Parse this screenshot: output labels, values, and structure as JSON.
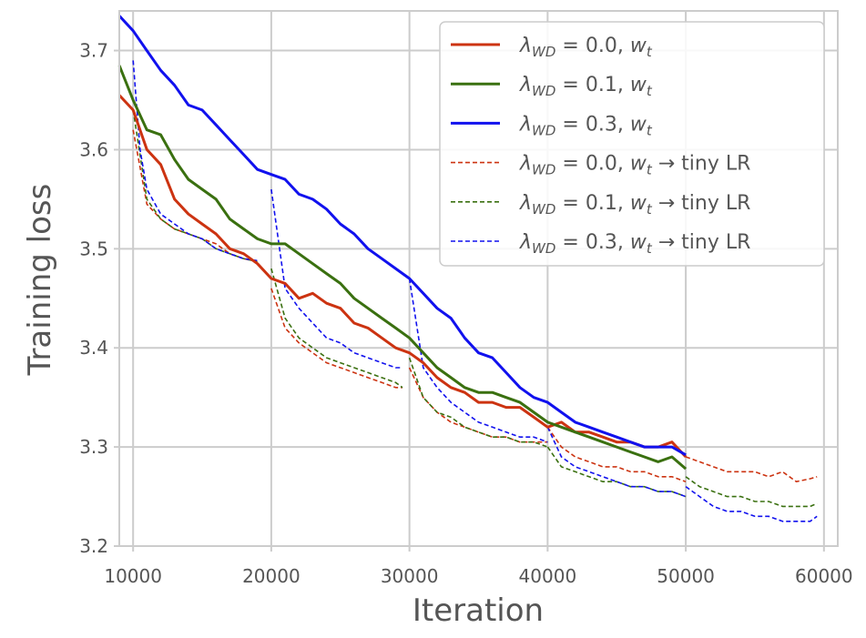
{
  "chart_data": {
    "type": "line",
    "xlabel": "Iteration",
    "ylabel": "Training loss",
    "xlim": [
      9000,
      61000
    ],
    "ylim": [
      3.2,
      3.74
    ],
    "xticks": [
      10000,
      20000,
      30000,
      40000,
      50000,
      60000
    ],
    "xtick_labels": [
      "10000",
      "20000",
      "30000",
      "40000",
      "50000",
      "60000"
    ],
    "yticks": [
      3.2,
      3.3,
      3.4,
      3.5,
      3.6,
      3.7
    ],
    "ytick_labels": [
      "3.2",
      "3.3",
      "3.4",
      "3.5",
      "3.6",
      "3.7"
    ],
    "grid": true,
    "legend_position": "top-right",
    "legend": [
      {
        "lambda_value": "0.0",
        "suffix": "",
        "color": "#cc3311",
        "style": "solid"
      },
      {
        "lambda_value": "0.1",
        "suffix": "",
        "color": "#3a7010",
        "style": "solid"
      },
      {
        "lambda_value": "0.3",
        "suffix": "",
        "color": "#1111ee",
        "style": "solid"
      },
      {
        "lambda_value": "0.0",
        "suffix": "tiny LR",
        "color": "#cc3311",
        "style": "dashed"
      },
      {
        "lambda_value": "0.1",
        "suffix": "tiny LR",
        "color": "#3a7010",
        "style": "dashed"
      },
      {
        "lambda_value": "0.3",
        "suffix": "tiny LR",
        "color": "#1111ee",
        "style": "dashed"
      }
    ],
    "series": [
      {
        "key": "wd0",
        "color": "#cc3311",
        "style": "solid",
        "x": [
          9000,
          10000,
          11000,
          12000,
          13000,
          14000,
          15000,
          16000,
          17000,
          18000,
          19000,
          20000,
          21000,
          22000,
          23000,
          24000,
          25000,
          26000,
          27000,
          28000,
          29000,
          30000,
          31000,
          32000,
          33000,
          34000,
          35000,
          36000,
          37000,
          38000,
          39000,
          40000,
          41000,
          42000,
          43000,
          44000,
          45000,
          46000,
          47000,
          48000,
          49000,
          50000
        ],
        "y": [
          3.655,
          3.64,
          3.6,
          3.585,
          3.55,
          3.535,
          3.525,
          3.515,
          3.5,
          3.495,
          3.485,
          3.47,
          3.465,
          3.45,
          3.455,
          3.445,
          3.44,
          3.425,
          3.42,
          3.41,
          3.4,
          3.395,
          3.385,
          3.37,
          3.36,
          3.355,
          3.345,
          3.345,
          3.34,
          3.34,
          3.33,
          3.32,
          3.325,
          3.315,
          3.315,
          3.31,
          3.305,
          3.305,
          3.3,
          3.3,
          3.305,
          3.29
        ]
      },
      {
        "key": "wd1",
        "color": "#3a7010",
        "style": "solid",
        "x": [
          9000,
          10000,
          11000,
          12000,
          13000,
          14000,
          15000,
          16000,
          17000,
          18000,
          19000,
          20000,
          21000,
          22000,
          23000,
          24000,
          25000,
          26000,
          27000,
          28000,
          29000,
          30000,
          31000,
          32000,
          33000,
          34000,
          35000,
          36000,
          37000,
          38000,
          39000,
          40000,
          41000,
          42000,
          43000,
          44000,
          45000,
          46000,
          47000,
          48000,
          49000,
          50000
        ],
        "y": [
          3.685,
          3.65,
          3.62,
          3.615,
          3.59,
          3.57,
          3.56,
          3.55,
          3.53,
          3.52,
          3.51,
          3.505,
          3.505,
          3.495,
          3.485,
          3.475,
          3.465,
          3.45,
          3.44,
          3.43,
          3.42,
          3.41,
          3.395,
          3.38,
          3.37,
          3.36,
          3.355,
          3.355,
          3.35,
          3.345,
          3.335,
          3.325,
          3.32,
          3.315,
          3.31,
          3.305,
          3.3,
          3.295,
          3.29,
          3.285,
          3.29,
          3.278
        ]
      },
      {
        "key": "wd3",
        "color": "#1111ee",
        "style": "solid",
        "x": [
          9000,
          10000,
          11000,
          12000,
          13000,
          14000,
          15000,
          16000,
          17000,
          18000,
          19000,
          20000,
          21000,
          22000,
          23000,
          24000,
          25000,
          26000,
          27000,
          28000,
          29000,
          30000,
          31000,
          32000,
          33000,
          34000,
          35000,
          36000,
          37000,
          38000,
          39000,
          40000,
          41000,
          42000,
          43000,
          44000,
          45000,
          46000,
          47000,
          48000,
          49000,
          50000
        ],
        "y": [
          3.735,
          3.72,
          3.7,
          3.68,
          3.665,
          3.645,
          3.64,
          3.625,
          3.61,
          3.595,
          3.58,
          3.575,
          3.57,
          3.555,
          3.55,
          3.54,
          3.525,
          3.515,
          3.5,
          3.49,
          3.48,
          3.47,
          3.455,
          3.44,
          3.43,
          3.41,
          3.395,
          3.39,
          3.375,
          3.36,
          3.35,
          3.345,
          3.335,
          3.325,
          3.32,
          3.315,
          3.31,
          3.305,
          3.3,
          3.3,
          3.3,
          3.292
        ]
      },
      {
        "key": "wd0-tiny",
        "color": "#cc3311",
        "style": "dashed",
        "segments": [
          {
            "x": [
              10000,
              11000,
              12000,
              13000,
              14000,
              15000,
              16000,
              17000,
              18000,
              19000
            ],
            "y": [
              3.62,
              3.545,
              3.53,
              3.52,
              3.515,
              3.51,
              3.505,
              3.495,
              3.49,
              3.487
            ]
          },
          {
            "x": [
              20000,
              21000,
              22000,
              23000,
              24000,
              25000,
              26000,
              27000,
              28000,
              29000,
              29500
            ],
            "y": [
              3.46,
              3.42,
              3.405,
              3.395,
              3.385,
              3.38,
              3.375,
              3.37,
              3.365,
              3.36,
              3.36
            ]
          },
          {
            "x": [
              30000,
              31000,
              32000,
              33000,
              34000,
              35000,
              36000,
              37000,
              38000,
              39000,
              40000
            ],
            "y": [
              3.38,
              3.35,
              3.335,
              3.325,
              3.32,
              3.315,
              3.31,
              3.31,
              3.305,
              3.305,
              3.305
            ]
          },
          {
            "x": [
              40000,
              41000,
              42000,
              43000,
              44000,
              45000,
              46000,
              47000,
              48000,
              49000,
              50000
            ],
            "y": [
              3.32,
              3.3,
              3.29,
              3.285,
              3.28,
              3.28,
              3.275,
              3.275,
              3.27,
              3.27,
              3.265
            ]
          },
          {
            "x": [
              50000,
              51000,
              52000,
              53000,
              54000,
              55000,
              56000,
              57000,
              58000,
              59000,
              59500
            ],
            "y": [
              3.29,
              3.285,
              3.28,
              3.275,
              3.275,
              3.275,
              3.27,
              3.275,
              3.265,
              3.268,
              3.27
            ]
          }
        ]
      },
      {
        "key": "wd1-tiny",
        "color": "#3a7010",
        "style": "dashed",
        "segments": [
          {
            "x": [
              10000,
              11000,
              12000,
              13000,
              14000,
              15000,
              16000,
              17000,
              18000,
              19000
            ],
            "y": [
              3.64,
              3.55,
              3.53,
              3.52,
              3.515,
              3.51,
              3.5,
              3.495,
              3.49,
              3.487
            ]
          },
          {
            "x": [
              20000,
              21000,
              22000,
              23000,
              24000,
              25000,
              26000,
              27000,
              28000,
              29000,
              29500
            ],
            "y": [
              3.48,
              3.43,
              3.41,
              3.4,
              3.39,
              3.385,
              3.38,
              3.375,
              3.37,
              3.365,
              3.36
            ]
          },
          {
            "x": [
              30000,
              31000,
              32000,
              33000,
              34000,
              35000,
              36000,
              37000,
              38000,
              39000,
              40000
            ],
            "y": [
              3.39,
              3.35,
              3.335,
              3.33,
              3.32,
              3.315,
              3.31,
              3.31,
              3.305,
              3.305,
              3.3
            ]
          },
          {
            "x": [
              40000,
              41000,
              42000,
              43000,
              44000,
              45000,
              46000,
              47000,
              48000,
              49000,
              50000
            ],
            "y": [
              3.3,
              3.28,
              3.275,
              3.27,
              3.265,
              3.265,
              3.26,
              3.26,
              3.255,
              3.255,
              3.25
            ]
          },
          {
            "x": [
              50000,
              51000,
              52000,
              53000,
              54000,
              55000,
              56000,
              57000,
              58000,
              59000,
              59500
            ],
            "y": [
              3.27,
              3.26,
              3.255,
              3.25,
              3.25,
              3.245,
              3.245,
              3.24,
              3.24,
              3.24,
              3.243
            ]
          }
        ]
      },
      {
        "key": "wd3-tiny",
        "color": "#1111ee",
        "style": "dashed",
        "segments": [
          {
            "x": [
              10000,
              10500,
              11000,
              12000,
              13000,
              14000,
              15000,
              16000,
              17000,
              18000,
              19000
            ],
            "y": [
              3.69,
              3.6,
              3.56,
              3.535,
              3.525,
              3.515,
              3.51,
              3.5,
              3.495,
              3.49,
              3.488
            ]
          },
          {
            "x": [
              20000,
              21000,
              22000,
              23000,
              24000,
              25000,
              26000,
              27000,
              28000,
              29000,
              29500
            ],
            "y": [
              3.56,
              3.46,
              3.44,
              3.425,
              3.41,
              3.405,
              3.395,
              3.39,
              3.385,
              3.38,
              3.38
            ]
          },
          {
            "x": [
              30000,
              31000,
              32000,
              33000,
              34000,
              35000,
              36000,
              37000,
              38000,
              39000,
              40000
            ],
            "y": [
              3.47,
              3.38,
              3.36,
              3.345,
              3.335,
              3.325,
              3.32,
              3.315,
              3.31,
              3.31,
              3.305
            ]
          },
          {
            "x": [
              40000,
              41000,
              42000,
              43000,
              44000,
              45000,
              46000,
              47000,
              48000,
              49000,
              50000
            ],
            "y": [
              3.32,
              3.29,
              3.28,
              3.275,
              3.27,
              3.265,
              3.26,
              3.26,
              3.255,
              3.255,
              3.25
            ]
          },
          {
            "x": [
              50000,
              51000,
              52000,
              53000,
              54000,
              55000,
              56000,
              57000,
              58000,
              59000,
              59500
            ],
            "y": [
              3.26,
              3.25,
              3.24,
              3.235,
              3.235,
              3.23,
              3.23,
              3.225,
              3.225,
              3.225,
              3.23
            ]
          }
        ]
      }
    ]
  }
}
